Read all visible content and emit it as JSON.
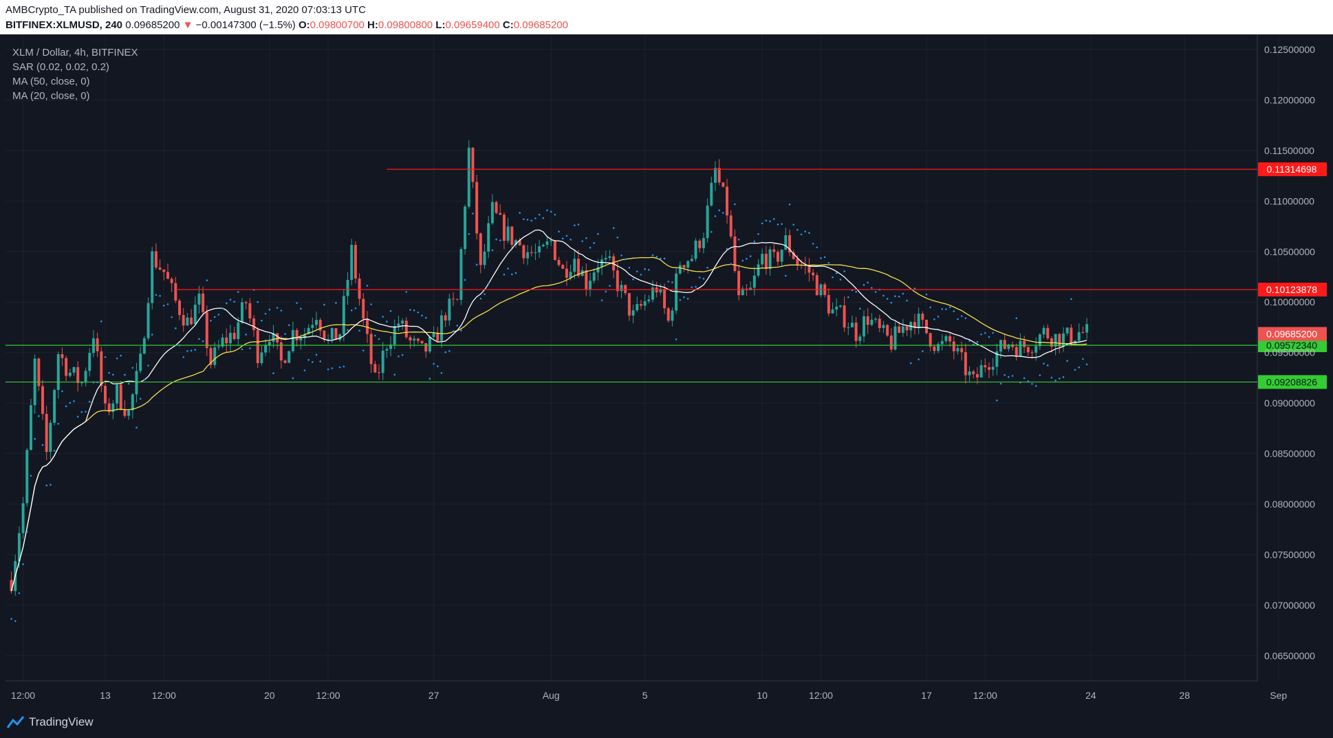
{
  "header": {
    "line1": "AMBCrypto_TA published on TradingView.com, August 31, 2020 07:03:13 UTC",
    "symbol": "BITFINEX:XLMUSD, 240",
    "last": "0.09685200",
    "arrow": "▼",
    "change": "−0.00147300 (−1.5%)",
    "o_label": "O:",
    "o_val": "0.09800700",
    "h_label": "H:",
    "h_val": "0.09800800",
    "l_label": "L:",
    "l_val": "0.09659400",
    "c_label": "C:",
    "c_val": "0.09685200"
  },
  "legend": {
    "title": "XLM / Dollar, 4h, BITFINEX",
    "sar": "SAR (0.02, 0.02, 0.2)",
    "ma50": "MA (50, close, 0)",
    "ma20": "MA (20, close, 0)"
  },
  "footer": {
    "brand": "TradingView"
  },
  "colors": {
    "background": "#131722",
    "up": "#26a69a",
    "down": "#ef5350",
    "ma20": "#ffffff",
    "ma50": "#f7e04b",
    "sar": "#2196f3",
    "resistance": "#ff1a1a",
    "support": "#33cc33"
  },
  "chart_data": {
    "type": "candlestick",
    "title": "XLM / Dollar, 4h, BITFINEX",
    "ylim": [
      0.0625,
      0.1265
    ],
    "y_ticks": [
      "0.12500000",
      "0.12000000",
      "0.11500000",
      "0.11000000",
      "0.10500000",
      "0.10000000",
      "0.09500000",
      "0.09000000",
      "0.08500000",
      "0.08000000",
      "0.07500000",
      "0.07000000",
      "0.06500000"
    ],
    "x_ticks": [
      "12:00",
      "13",
      "12:00",
      "20",
      "12:00",
      "27",
      "Aug",
      "5",
      "10",
      "12:00",
      "17",
      "12:00",
      "24",
      "28",
      "Sep"
    ],
    "horizontal_lines": [
      {
        "label": "0.11314698",
        "value": 0.11314698,
        "color": "resistance",
        "start": "Jul 25"
      },
      {
        "label": "0.10123878",
        "value": 0.10123878,
        "color": "resistance",
        "start": "Jul 16"
      },
      {
        "label": "0.09572340",
        "value": 0.0957234,
        "color": "support",
        "start": "start"
      },
      {
        "label": "0.09208826",
        "value": 0.09208826,
        "color": "support",
        "start": "start"
      }
    ],
    "last_price_label": "0.09685200",
    "close_path": [
      [
        "Jul 9 00:00",
        0.0725
      ],
      [
        "Jul 9 12:00",
        0.08
      ],
      [
        "Jul 10 00:00",
        0.094
      ],
      [
        "Jul 10 12:00",
        0.085
      ],
      [
        "Jul 11 00:00",
        0.095
      ],
      [
        "Jul 11 12:00",
        0.093
      ],
      [
        "Jul 12 00:00",
        0.092
      ],
      [
        "Jul 12 12:00",
        0.097
      ],
      [
        "Jul 13 00:00",
        0.089
      ],
      [
        "Jul 13 12:00",
        0.091
      ],
      [
        "Jul 14 00:00",
        0.089
      ],
      [
        "Jul 14 12:00",
        0.094
      ],
      [
        "Jul 15 00:00",
        0.1045
      ],
      [
        "Jul 15 12:00",
        0.103
      ],
      [
        "Jul 16 00:00",
        0.1
      ],
      [
        "Jul 16 12:00",
        0.098
      ],
      [
        "Jul 17 00:00",
        0.1
      ],
      [
        "Jul 17 12:00",
        0.094
      ],
      [
        "Jul 18 00:00",
        0.096
      ],
      [
        "Jul 18 12:00",
        0.097
      ],
      [
        "Jul 19 00:00",
        0.1
      ],
      [
        "Jul 19 12:00",
        0.095
      ],
      [
        "Jul 20 00:00",
        0.097
      ],
      [
        "Jul 20 12:00",
        0.094
      ],
      [
        "Jul 21 00:00",
        0.097
      ],
      [
        "Jul 21 12:00",
        0.097
      ],
      [
        "Jul 22 00:00",
        0.099
      ],
      [
        "Jul 22 12:00",
        0.096
      ],
      [
        "Jul 23 00:00",
        0.097
      ],
      [
        "Jul 23 12:00",
        0.105
      ],
      [
        "Jul 24 00:00",
        0.098
      ],
      [
        "Jul 24 12:00",
        0.092
      ],
      [
        "Jul 25 00:00",
        0.096
      ],
      [
        "Jul 25 12:00",
        0.098
      ],
      [
        "Jul 26 00:00",
        0.096
      ],
      [
        "Jul 26 12:00",
        0.095
      ],
      [
        "Jul 27 00:00",
        0.096
      ],
      [
        "Jul 27 12:00",
        0.099
      ],
      [
        "Jul 28 00:00",
        0.1
      ],
      [
        "Jul 28 12:00",
        0.115
      ],
      [
        "Jul 29 00:00",
        0.103
      ],
      [
        "Jul 29 12:00",
        0.109
      ],
      [
        "Jul 30 00:00",
        0.107
      ],
      [
        "Jul 30 12:00",
        0.106
      ],
      [
        "Jul 31 00:00",
        0.105
      ],
      [
        "Jul 31 12:00",
        0.1045
      ],
      [
        "Aug 1 00:00",
        0.106
      ],
      [
        "Aug 1 12:00",
        0.103
      ],
      [
        "Aug 2 00:00",
        0.1045
      ],
      [
        "Aug 2 12:00",
        0.102
      ],
      [
        "Aug 3 00:00",
        0.104
      ],
      [
        "Aug 3 12:00",
        0.1035
      ],
      [
        "Aug 4 00:00",
        0.101
      ],
      [
        "Aug 4 12:00",
        0.0985
      ],
      [
        "Aug 5 00:00",
        0.1
      ],
      [
        "Aug 5 12:00",
        0.1015
      ],
      [
        "Aug 6 00:00",
        0.098
      ],
      [
        "Aug 6 12:00",
        0.104
      ],
      [
        "Aug 7 00:00",
        0.1045
      ],
      [
        "Aug 7 12:00",
        0.107
      ],
      [
        "Aug 8 00:00",
        0.113
      ],
      [
        "Aug 8 12:00",
        0.109
      ],
      [
        "Aug 9 00:00",
        0.1
      ],
      [
        "Aug 9 12:00",
        0.101
      ],
      [
        "Aug 10 00:00",
        0.1045
      ],
      [
        "Aug 10 12:00",
        0.104
      ],
      [
        "Aug 11 00:00",
        0.106
      ],
      [
        "Aug 11 12:00",
        0.104
      ],
      [
        "Aug 12 00:00",
        0.103
      ],
      [
        "Aug 12 12:00",
        0.101
      ],
      [
        "Aug 13 00:00",
        0.099
      ],
      [
        "Aug 13 12:00",
        0.0985
      ],
      [
        "Aug 14 00:00",
        0.097
      ],
      [
        "Aug 14 12:00",
        0.0985
      ],
      [
        "Aug 15 00:00",
        0.097
      ],
      [
        "Aug 15 12:00",
        0.096
      ],
      [
        "Aug 16 00:00",
        0.0975
      ],
      [
        "Aug 16 12:00",
        0.0985
      ],
      [
        "Aug 17 00:00",
        0.097
      ],
      [
        "Aug 17 12:00",
        0.0955
      ],
      [
        "Aug 18 00:00",
        0.096
      ],
      [
        "Aug 18 12:00",
        0.094
      ],
      [
        "Aug 19 00:00",
        0.092
      ],
      [
        "Aug 19 12:00",
        0.094
      ],
      [
        "Aug 20 00:00",
        0.095
      ],
      [
        "Aug 20 12:00",
        0.096
      ],
      [
        "Aug 21 00:00",
        0.0955
      ],
      [
        "Aug 21 12:00",
        0.096
      ],
      [
        "Aug 22 00:00",
        0.097
      ],
      [
        "Aug 22 12:00",
        0.0965
      ],
      [
        "Aug 23 00:00",
        0.0965
      ],
      [
        "Aug 23 12:00",
        0.097
      ],
      [
        "Aug 24 00:00",
        0.09685
      ]
    ]
  }
}
